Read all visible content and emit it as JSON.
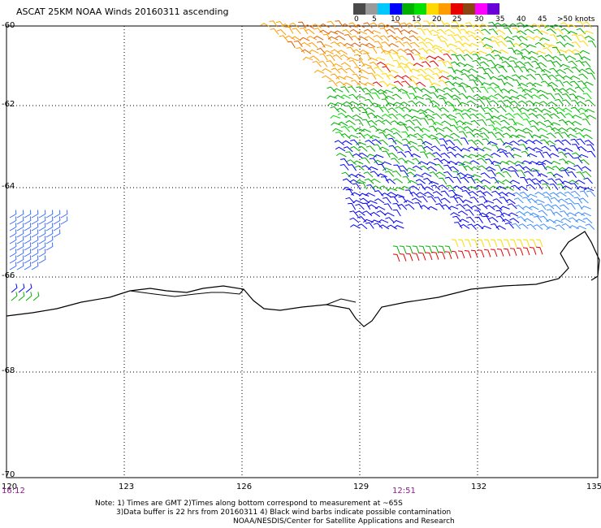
{
  "title": "ASCAT 25KM NOAA Winds 20160311 ascending",
  "legend": {
    "labels": [
      "0",
      "5",
      "10",
      "15",
      "20",
      "25",
      "30",
      "35",
      "40",
      "45",
      ">50 knots"
    ],
    "colors": [
      "#4a4a4a",
      "#9a9a9a",
      "#00c8ff",
      "#0000ff",
      "#00b000",
      "#00e000",
      "#ffd800",
      "#ff9c00",
      "#e80000",
      "#8b4513",
      "#ff00ff",
      "#6a00d8"
    ]
  },
  "lat_labels": [
    "-60",
    "-62",
    "-64",
    "-66",
    "-68",
    "-70"
  ],
  "lon_labels": [
    "120",
    "123",
    "126",
    "129",
    "132",
    "135"
  ],
  "time_labels": [
    "16:12",
    "12:51"
  ],
  "notes": [
    "Note: 1) Times are GMT 2)Times along bottom correspond to measurement at ~65S",
    "3)Data buffer is 22 hrs from 20160311 4) Black wind barbs indicate possible contamination",
    "NOAA/NESDIS/Center for Satellite Applications and Research"
  ]
}
